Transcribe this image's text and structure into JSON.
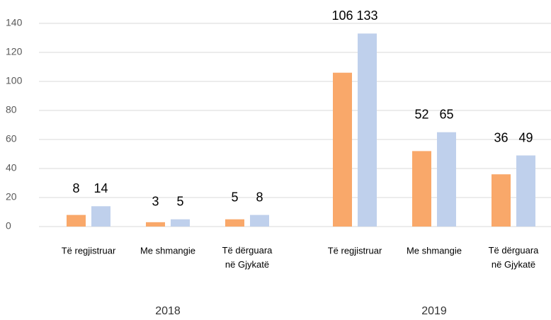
{
  "chart_data": {
    "type": "bar",
    "categories": [
      "Të regjistruar",
      "Me shmangie",
      "Të dërguara në Gjykatë",
      "Të regjistruar",
      "Me shmangie",
      "Të dërguara në Gjykatë"
    ],
    "groups": [
      "2018",
      "2019"
    ],
    "series": [
      {
        "color": "#f9a86a",
        "values": [
          8,
          3,
          5,
          106,
          52,
          36
        ]
      },
      {
        "color": "#bfd0ec",
        "values": [
          14,
          5,
          8,
          133,
          65,
          49
        ]
      }
    ],
    "ylim": [
      0,
      140
    ],
    "yticks": [
      0,
      20,
      40,
      60,
      80,
      100,
      120,
      140
    ],
    "grid": true
  }
}
